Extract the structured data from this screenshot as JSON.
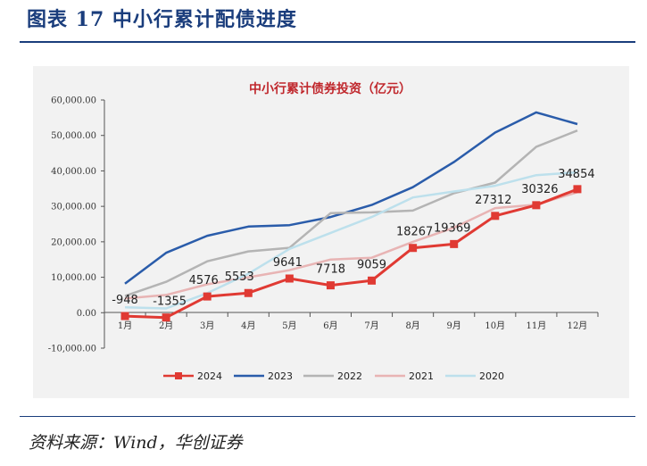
{
  "header": {
    "title": "图表 17 中小行累计配债进度"
  },
  "footer": {
    "source": "资料来源：Wind，华创证券"
  },
  "chart_data": {
    "type": "line",
    "title": "中小行累计债券投资（亿元）",
    "xlabel": "",
    "ylabel": "",
    "categories": [
      "1月",
      "2月",
      "3月",
      "4月",
      "5月",
      "6月",
      "7月",
      "8月",
      "9月",
      "10月",
      "11月",
      "12月"
    ],
    "yticks": [
      "60,000.00",
      "50,000.00",
      "40,000.00",
      "30,000.00",
      "20,000.00",
      "10,000.00",
      "0.00",
      "-10,000.00"
    ],
    "ylim": [
      -10000,
      60000
    ],
    "grid": false,
    "legend": "bottom",
    "series": [
      {
        "name": "2024",
        "color": "#e03a33",
        "marker": "square",
        "values": [
          -948,
          -1355,
          4576,
          5553,
          9641,
          7718,
          9059,
          18267,
          19369,
          27312,
          30326,
          34854
        ],
        "labels": [
          "-948",
          "-1355",
          "4576",
          "5553",
          "9641",
          "7718",
          "9059",
          "18267",
          "19369",
          "27312",
          "30326",
          "34854"
        ]
      },
      {
        "name": "2023",
        "color": "#2a5caa",
        "values": [
          8200,
          16900,
          21700,
          24300,
          24700,
          27000,
          30400,
          35400,
          42500,
          50800,
          56500,
          53200
        ]
      },
      {
        "name": "2022",
        "color": "#b4b4b4",
        "values": [
          4700,
          8700,
          14500,
          17300,
          18300,
          28100,
          28300,
          28800,
          33700,
          36700,
          46800,
          51400
        ]
      },
      {
        "name": "2021",
        "color": "#e8b4b4",
        "values": [
          4000,
          5000,
          8000,
          10000,
          12000,
          15000,
          15500,
          20000,
          24000,
          29500,
          30500,
          34000
        ]
      },
      {
        "name": "2020",
        "color": "#bde0ec",
        "values": [
          1500,
          1200,
          5500,
          11000,
          18000,
          22500,
          27000,
          32500,
          34200,
          35800,
          38800,
          39600
        ]
      }
    ]
  }
}
